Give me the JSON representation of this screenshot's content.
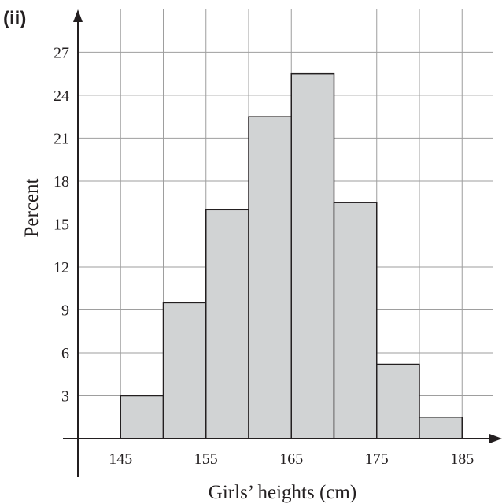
{
  "part_label": "(ii)",
  "chart_data": {
    "type": "bar",
    "title": "",
    "xlabel": "Girls’ heights (cm)",
    "ylabel": "Percent",
    "bin_edges": [
      145,
      150,
      155,
      160,
      165,
      170,
      175,
      180,
      185
    ],
    "values": [
      3,
      9.5,
      16,
      22.5,
      25.5,
      16.5,
      5.2,
      1.5
    ],
    "xlim": [
      135,
      190
    ],
    "ylim": [
      0,
      29
    ],
    "x_grid_step": 5,
    "y_grid_step": 3,
    "x_ticks": [
      145,
      155,
      165,
      175,
      185
    ],
    "y_ticks": [
      3,
      6,
      9,
      12,
      15,
      18,
      21,
      24,
      27
    ],
    "grid": true,
    "bar_color": "#d1d3d4",
    "edge_color": "#231f20"
  }
}
